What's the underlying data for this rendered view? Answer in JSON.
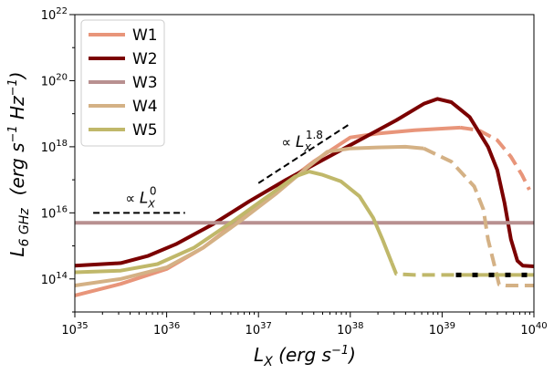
{
  "chart_data": {
    "type": "line",
    "title": "",
    "xlabel": {
      "base": "L",
      "sub": "X",
      "rest": " (erg s",
      "exp": "−1",
      "close": ")"
    },
    "ylabel": {
      "base": "L",
      "sub": "6 GHz",
      "unit_a": "(erg s",
      "exp_a": "−1",
      "unit_b": " Hz",
      "exp_b": "−1",
      "close": ")"
    },
    "x_scale": "log",
    "y_scale": "log",
    "xlim": [
      1e+35,
      1e+40
    ],
    "ylim": [
      10000000000000.0,
      1e+22
    ],
    "xticks": [
      {
        "value": 1e+35,
        "base": "10",
        "exp": "35"
      },
      {
        "value": 1e+36,
        "base": "10",
        "exp": "36"
      },
      {
        "value": 1e+37,
        "base": "10",
        "exp": "37"
      },
      {
        "value": 1e+38,
        "base": "10",
        "exp": "38"
      },
      {
        "value": 1e+39,
        "base": "10",
        "exp": "39"
      },
      {
        "value": 1e+40,
        "base": "10",
        "exp": "40"
      }
    ],
    "yticks": [
      {
        "value": 100000000000000.0,
        "base": "10",
        "exp": "14"
      },
      {
        "value": 1e+16,
        "base": "10",
        "exp": "16"
      },
      {
        "value": 1e+18,
        "base": "10",
        "exp": "18"
      },
      {
        "value": 1e+20,
        "base": "10",
        "exp": "20"
      },
      {
        "value": 1e+22,
        "base": "10",
        "exp": "22"
      }
    ],
    "legend_position": "top-left",
    "grid": false,
    "series": [
      {
        "name": "W1",
        "color": "#e8957a",
        "solid": [
          [
            35,
            13.5
          ],
          [
            35.5,
            13.85
          ],
          [
            36,
            14.3
          ],
          [
            36.4,
            14.95
          ],
          [
            36.8,
            15.8
          ],
          [
            37.2,
            16.7
          ],
          [
            37.6,
            17.55
          ],
          [
            38,
            18.28
          ],
          [
            38.3,
            18.4
          ],
          [
            38.7,
            18.5
          ],
          [
            39,
            18.55
          ],
          [
            39.2,
            18.58
          ]
        ],
        "dashed": [
          [
            39.2,
            18.58
          ],
          [
            39.4,
            18.5
          ],
          [
            39.6,
            18.2
          ],
          [
            39.75,
            17.7
          ],
          [
            39.87,
            17.15
          ],
          [
            39.95,
            16.7
          ]
        ]
      },
      {
        "name": "W2",
        "color": "#7b0000",
        "solid": [
          [
            35,
            14.4
          ],
          [
            35.5,
            14.48
          ],
          [
            35.8,
            14.7
          ],
          [
            36.1,
            15.05
          ],
          [
            36.5,
            15.65
          ],
          [
            36.9,
            16.35
          ],
          [
            37.3,
            17.0
          ],
          [
            37.7,
            17.6
          ],
          [
            38.1,
            18.2
          ],
          [
            38.5,
            18.8
          ],
          [
            38.8,
            19.3
          ],
          [
            38.95,
            19.45
          ],
          [
            39.1,
            19.35
          ],
          [
            39.3,
            18.9
          ],
          [
            39.5,
            18.0
          ],
          [
            39.6,
            17.3
          ],
          [
            39.68,
            16.3
          ],
          [
            39.75,
            15.2
          ],
          [
            39.82,
            14.55
          ],
          [
            39.88,
            14.4
          ],
          [
            40,
            14.38
          ]
        ]
      },
      {
        "name": "W3",
        "color": "#b89090",
        "solid": [
          [
            35,
            15.7
          ],
          [
            40,
            15.7
          ]
        ]
      },
      {
        "name": "W4",
        "color": "#d4b185",
        "solid": [
          [
            35,
            13.8
          ],
          [
            35.5,
            14.0
          ],
          [
            36,
            14.35
          ],
          [
            36.4,
            14.95
          ],
          [
            36.8,
            15.75
          ],
          [
            37.2,
            16.6
          ],
          [
            37.5,
            17.3
          ],
          [
            37.75,
            17.85
          ],
          [
            38,
            17.95
          ],
          [
            38.3,
            17.98
          ],
          [
            38.6,
            18.0
          ],
          [
            38.8,
            17.95
          ]
        ],
        "dashed": [
          [
            38.8,
            17.95
          ],
          [
            39.1,
            17.55
          ],
          [
            39.35,
            16.8
          ],
          [
            39.45,
            16.1
          ],
          [
            39.5,
            15.2
          ],
          [
            39.58,
            14.3
          ],
          [
            39.62,
            13.83
          ],
          [
            39.7,
            13.8
          ],
          [
            40,
            13.8
          ]
        ]
      },
      {
        "name": "W5",
        "color": "#c0b86a",
        "solid": [
          [
            35,
            14.2
          ],
          [
            35.5,
            14.25
          ],
          [
            35.9,
            14.45
          ],
          [
            36.3,
            14.95
          ],
          [
            36.7,
            15.7
          ],
          [
            37.1,
            16.5
          ],
          [
            37.4,
            17.1
          ],
          [
            37.55,
            17.25
          ],
          [
            37.7,
            17.15
          ],
          [
            37.9,
            16.95
          ],
          [
            38.1,
            16.5
          ],
          [
            38.25,
            15.85
          ],
          [
            38.35,
            15.2
          ],
          [
            38.45,
            14.5
          ]
        ],
        "dashed": [
          [
            38.45,
            14.5
          ],
          [
            38.5,
            14.15
          ],
          [
            38.7,
            14.12
          ],
          [
            39.2,
            14.12
          ]
        ],
        "dotted": [
          [
            39.15,
            14.12
          ],
          [
            40,
            14.12
          ]
        ]
      }
    ],
    "reference_lines": [
      {
        "label": "L",
        "sub": "X",
        "exp": "0",
        "from": [
          35.2,
          16.0
        ],
        "to": [
          36.2,
          16.0
        ],
        "label_at": [
          35.55,
          16.3
        ]
      },
      {
        "label": "L",
        "sub": "X",
        "exp": "1.8",
        "from": [
          37.0,
          16.9
        ],
        "to": [
          38.0,
          18.7
        ],
        "label_at": [
          37.25,
          18.0
        ]
      }
    ],
    "prop_symbol": "∝"
  }
}
